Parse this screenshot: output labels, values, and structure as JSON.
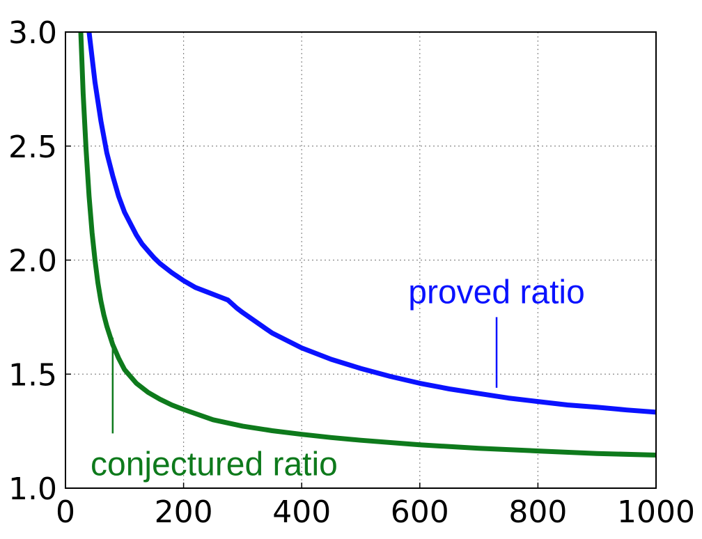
{
  "chart_data": {
    "type": "line",
    "title": "",
    "xlabel": "",
    "ylabel": "",
    "xlim": [
      0,
      1000
    ],
    "ylim": [
      1.0,
      3.0
    ],
    "grid": true,
    "x_ticks": [
      "0",
      "200",
      "400",
      "600",
      "800",
      "1000"
    ],
    "y_ticks": [
      "1.0",
      "1.5",
      "2.0",
      "2.5",
      "3.0"
    ],
    "series": [
      {
        "name": "proved ratio",
        "color": "#0a12ff",
        "x": [
          40,
          50,
          60,
          70,
          80,
          90,
          100,
          110,
          120,
          130,
          140,
          150,
          160,
          180,
          200,
          220,
          240,
          260,
          275,
          290,
          300,
          350,
          400,
          450,
          500,
          550,
          600,
          650,
          700,
          750,
          800,
          850,
          900,
          950,
          1000
        ],
        "y": [
          3.0,
          2.78,
          2.61,
          2.47,
          2.37,
          2.28,
          2.21,
          2.16,
          2.11,
          2.07,
          2.04,
          2.01,
          1.985,
          1.945,
          1.91,
          1.88,
          1.86,
          1.84,
          1.825,
          1.79,
          1.77,
          1.68,
          1.615,
          1.565,
          1.525,
          1.49,
          1.46,
          1.435,
          1.415,
          1.395,
          1.38,
          1.365,
          1.355,
          1.343,
          1.333
        ]
      },
      {
        "name": "conjectured ratio",
        "color": "#0e7a1c",
        "x": [
          26,
          30,
          35,
          40,
          45,
          50,
          55,
          60,
          65,
          70,
          80,
          90,
          100,
          120,
          140,
          160,
          180,
          200,
          250,
          300,
          350,
          400,
          450,
          500,
          600,
          700,
          800,
          900,
          1000
        ],
        "y": [
          3.0,
          2.73,
          2.48,
          2.28,
          2.12,
          2.0,
          1.9,
          1.82,
          1.76,
          1.71,
          1.63,
          1.57,
          1.52,
          1.46,
          1.42,
          1.39,
          1.365,
          1.345,
          1.3,
          1.272,
          1.252,
          1.236,
          1.222,
          1.21,
          1.19,
          1.175,
          1.163,
          1.152,
          1.145
        ]
      }
    ],
    "annotations": [
      {
        "text": "proved ratio",
        "series": "proved ratio",
        "pointer_x": 730,
        "pointer_y": [
          1.75,
          1.44
        ]
      },
      {
        "text": "conjectured ratio",
        "series": "conjectured ratio",
        "pointer_x": 80,
        "pointer_y": [
          1.66,
          1.24
        ]
      }
    ]
  }
}
